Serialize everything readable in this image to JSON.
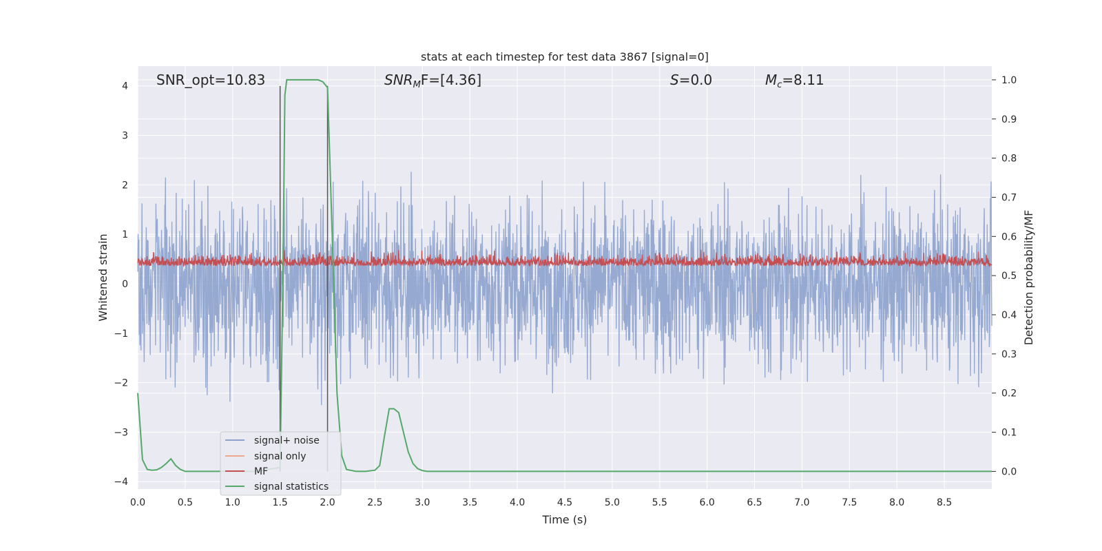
{
  "chart_data": {
    "type": "line",
    "title": "stats at each timestep for test data 3867 [signal=0]",
    "xlabel": "Time (s)",
    "ylabel": "Whitened strain",
    "y2label": "Detection probability/MF",
    "xlim": [
      0.0,
      9.0
    ],
    "ylim": [
      -4.15,
      4.4
    ],
    "y2lim": [
      -0.045,
      1.035
    ],
    "xticks": [
      "0.0",
      "0.5",
      "1.0",
      "1.5",
      "2.0",
      "2.5",
      "3.0",
      "3.5",
      "4.0",
      "4.5",
      "5.0",
      "5.5",
      "6.0",
      "6.5",
      "7.0",
      "7.5",
      "8.0",
      "8.5"
    ],
    "yticks": [
      "−4",
      "−3",
      "−2",
      "−1",
      "0",
      "1",
      "2",
      "3",
      "4"
    ],
    "y2ticks": [
      "0.0",
      "0.1",
      "0.2",
      "0.3",
      "0.4",
      "0.5",
      "0.6",
      "0.7",
      "0.8",
      "0.9",
      "1.0"
    ],
    "grid": true,
    "legend_position": "lower-left",
    "annotations": {
      "snr_opt": "SNR_opt=10.83",
      "snr_mf_sym": "SNR",
      "snr_mf_sub": "M",
      "snr_mf_rest": "F=[4.36]",
      "s_sym": "S",
      "s_rest": "=0.0",
      "mc_sym": "M",
      "mc_sub": "c",
      "mc_rest": "=8.11"
    },
    "window_markers": [
      1.5,
      2.0
    ],
    "series": [
      {
        "name": "signal+ noise",
        "color": "#8da2cd",
        "description_range": [
          -3.7,
          4.0
        ]
      },
      {
        "name": "signal only",
        "color": "#eea78a",
        "values": []
      },
      {
        "name": "MF",
        "color": "#c44e52",
        "axis": "right",
        "range": [
          0.49,
          0.6
        ]
      },
      {
        "name": "signal statistics",
        "color": "#55a868",
        "axis": "right",
        "x": [
          0.0,
          0.05,
          0.1,
          0.15,
          0.2,
          0.25,
          0.3,
          0.35,
          0.4,
          0.45,
          0.5,
          0.75,
          1.0,
          1.25,
          1.5,
          1.53,
          1.55,
          1.57,
          1.6,
          1.7,
          1.8,
          1.9,
          1.95,
          2.0,
          2.05,
          2.1,
          2.15,
          2.2,
          2.3,
          2.4,
          2.5,
          2.55,
          2.6,
          2.65,
          2.7,
          2.75,
          2.8,
          2.85,
          2.9,
          2.95,
          3.0,
          3.05,
          3.1,
          3.5,
          4.0,
          5.0,
          6.0,
          7.0,
          8.0,
          9.0
        ],
        "values": [
          0.2,
          0.03,
          0.005,
          0.003,
          0.004,
          0.01,
          0.02,
          0.032,
          0.015,
          0.005,
          0.0,
          0.0,
          0.0,
          0.0,
          0.01,
          0.5,
          0.96,
          1.0,
          1.0,
          1.0,
          1.0,
          1.0,
          0.995,
          0.98,
          0.6,
          0.2,
          0.04,
          0.005,
          0.0,
          0.0,
          0.003,
          0.015,
          0.09,
          0.16,
          0.16,
          0.15,
          0.1,
          0.05,
          0.02,
          0.007,
          0.002,
          0.0,
          0.0,
          0.0,
          0.0,
          0.0,
          0.0,
          0.0,
          0.0,
          0.0
        ]
      }
    ]
  }
}
